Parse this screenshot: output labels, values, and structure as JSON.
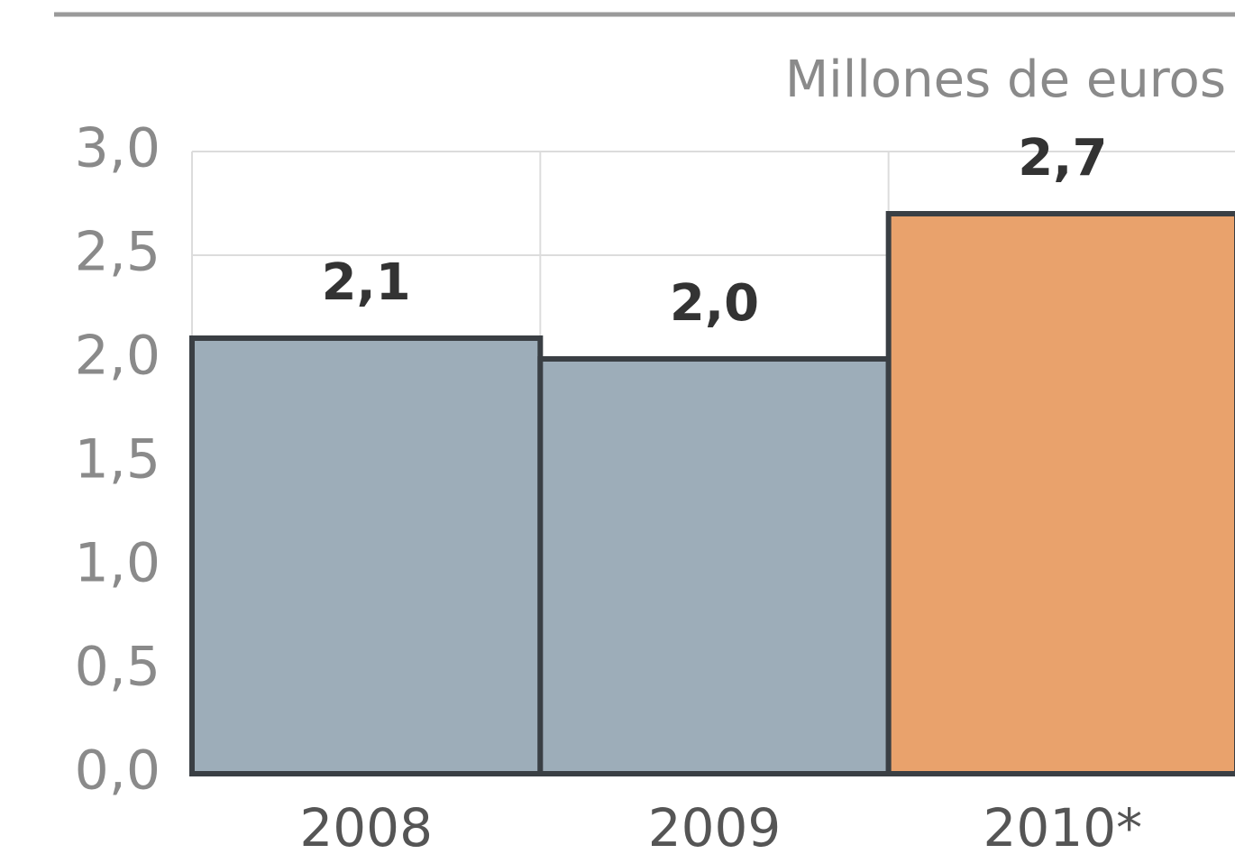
{
  "chart_data": {
    "type": "bar",
    "subtitle": "Millones de euros",
    "categories": [
      "2008",
      "2009",
      "2010*"
    ],
    "values": [
      2.1,
      2.0,
      2.7
    ],
    "value_labels": [
      "2,1",
      "2,0",
      "2,7"
    ],
    "colors": [
      "#9dadb9",
      "#9dadb9",
      "#e9a26c"
    ],
    "ylim": [
      0,
      3
    ],
    "yticks": [
      {
        "value": 0,
        "label": "0,0"
      },
      {
        "value": 0.5,
        "label": "0,5"
      },
      {
        "value": 1,
        "label": "1,0"
      },
      {
        "value": 1.5,
        "label": "1,5"
      },
      {
        "value": 2,
        "label": "2,0"
      },
      {
        "value": 2.5,
        "label": "2,5"
      },
      {
        "value": 3,
        "label": "3,0"
      }
    ],
    "grid": true
  }
}
